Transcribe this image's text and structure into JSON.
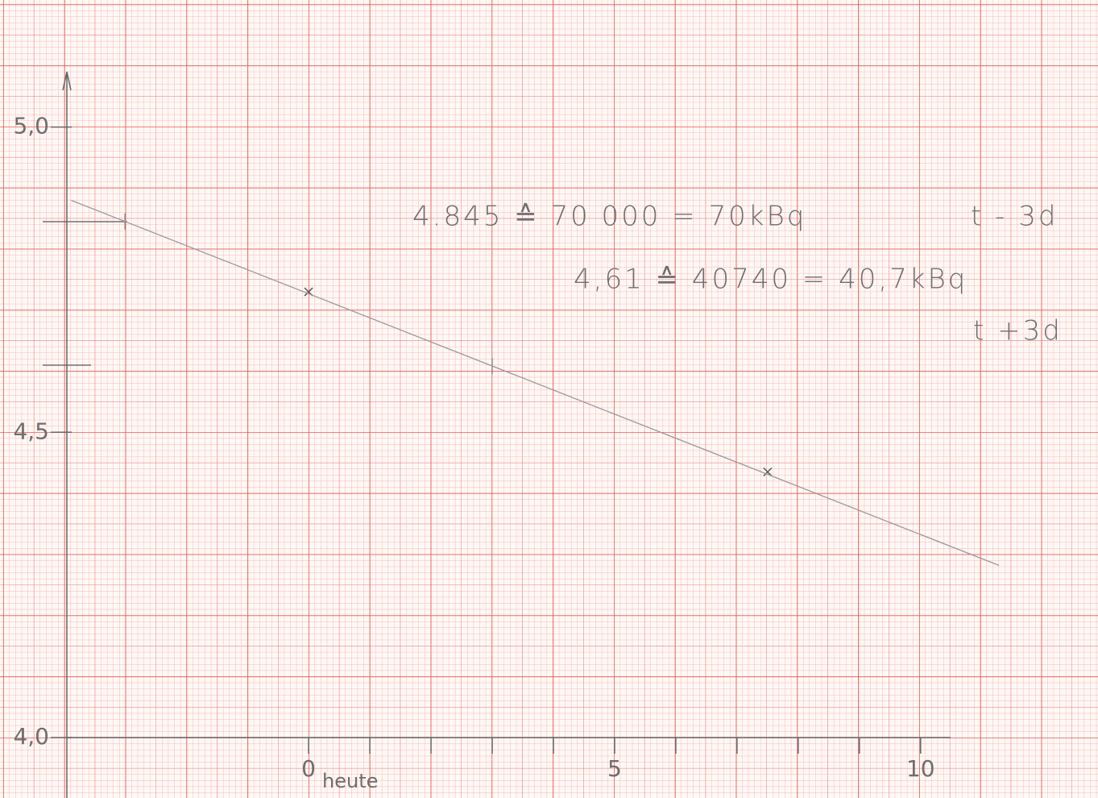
{
  "chart_data": {
    "type": "line",
    "xlim": [
      -3.95,
      10.49
    ],
    "ylim": [
      4.0,
      5.08
    ],
    "xticks": [
      0,
      5,
      10
    ],
    "minor_xticks": [
      1,
      2,
      3,
      4,
      6,
      7,
      8,
      9
    ],
    "yticks": [
      {
        "value": 5.0,
        "label": "5,0"
      },
      {
        "value": 4.5,
        "label": "4,5"
      },
      {
        "value": 4.0,
        "label": "4,0"
      }
    ],
    "x_note": "heute",
    "series": [
      {
        "x": [
          0,
          7.5
        ],
        "values": [
          4.73,
          4.435
        ],
        "color": "#555555",
        "marker": "cross"
      },
      {
        "x": [
          -3.88,
          11.28
        ],
        "values": [
          4.88,
          4.282
        ],
        "color": "#9a9a9a",
        "marker": "none"
      }
    ],
    "reference_y": [
      4.845,
      4.61
    ],
    "reference_x": [
      -3,
      3
    ],
    "annotations": [
      "4.845  ≙ 70 000 = 70kBq",
      "t - 3d",
      "4,61 ≙  40740 = 40,7kBq",
      "t +3d"
    ]
  }
}
